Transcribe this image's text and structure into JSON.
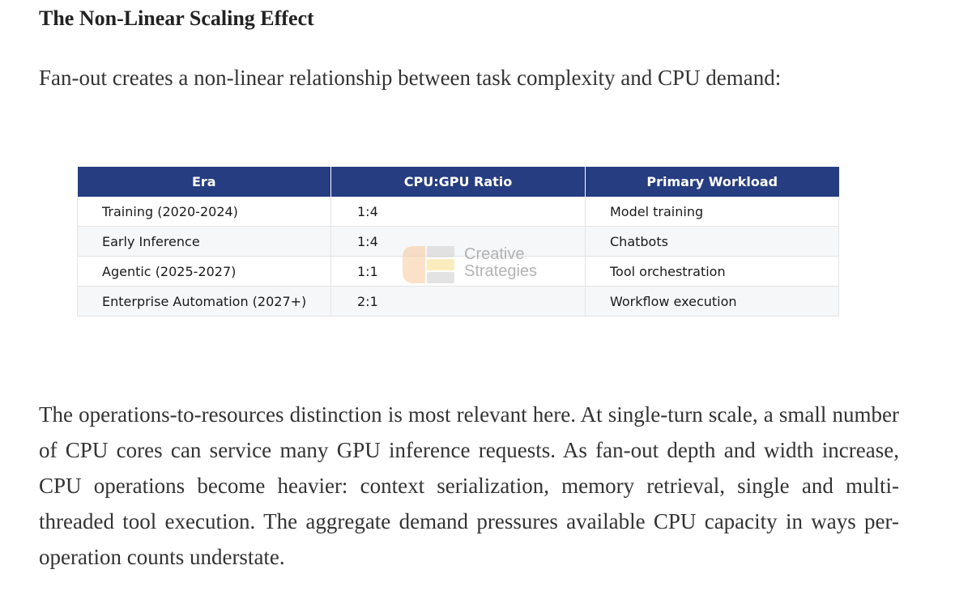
{
  "heading": "The Non-Linear Scaling Effect",
  "lead": "Fan-out creates a non-linear relationship between task complexity and CPU demand:",
  "table": {
    "headers": [
      "Era",
      "CPU:GPU Ratio",
      "Primary Workload"
    ],
    "rows": [
      {
        "era": "Training (2020-2024)",
        "ratio": "1:4",
        "workload": "Model training"
      },
      {
        "era": "Early Inference",
        "ratio": "1:4",
        "workload": "Chatbots"
      },
      {
        "era": "Agentic (2025-2027)",
        "ratio": "1:1",
        "workload": "Tool orchestration"
      },
      {
        "era": "Enterprise Automation (2027+)",
        "ratio": "2:1",
        "workload": "Workflow execution"
      }
    ]
  },
  "watermark": {
    "line1": "Creative",
    "line2": "Strategies",
    "colors": {
      "orange": "#f7c89b",
      "yellow": "#f9e29a",
      "gray": "#d9d9d9"
    }
  },
  "body": "The operations-to-resources distinction is most relevant here. At single-turn scale, a small number of CPU cores can service many GPU inference requests. As fan-out depth and width increase, CPU operations become heavier: context serialization, memory retrieval, single and multi-threaded tool execution. The aggregate demand pressures available CPU capacity in ways per-operation counts understate.",
  "colors": {
    "header_bg": "#263d82",
    "header_text": "#ffffff",
    "text": "#333333"
  }
}
